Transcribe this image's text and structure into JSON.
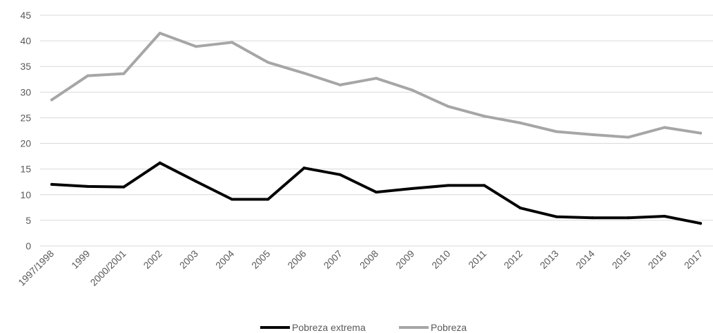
{
  "chart_data": {
    "type": "line",
    "categories": [
      "1997/1998",
      "1999",
      "2000/2001",
      "2002",
      "2003",
      "2004",
      "2005",
      "2006",
      "2007",
      "2008",
      "2009",
      "2010",
      "2011",
      "2012",
      "2013",
      "2014",
      "2015",
      "2016",
      "2017"
    ],
    "series": [
      {
        "name": "Pobreza extrema",
        "color": "#000000",
        "values": [
          12.0,
          11.6,
          11.5,
          16.2,
          12.6,
          9.1,
          9.1,
          15.2,
          13.9,
          10.5,
          11.2,
          11.8,
          11.8,
          7.4,
          5.7,
          5.5,
          5.5,
          5.8,
          4.4
        ]
      },
      {
        "name": "Pobreza",
        "color": "#a6a6a6",
        "values": [
          28.5,
          33.2,
          33.6,
          41.5,
          38.9,
          39.7,
          35.8,
          33.7,
          31.4,
          32.7,
          30.4,
          27.2,
          25.3,
          24.0,
          22.3,
          21.7,
          21.2,
          23.1,
          22.0
        ]
      }
    ],
    "yticks": [
      "0",
      "5",
      "10",
      "15",
      "20",
      "25",
      "30",
      "35",
      "40",
      "45"
    ],
    "ylim": [
      0,
      45
    ],
    "grid": true,
    "legend_position": "bottom",
    "title": "",
    "xlabel": "",
    "ylabel": ""
  }
}
